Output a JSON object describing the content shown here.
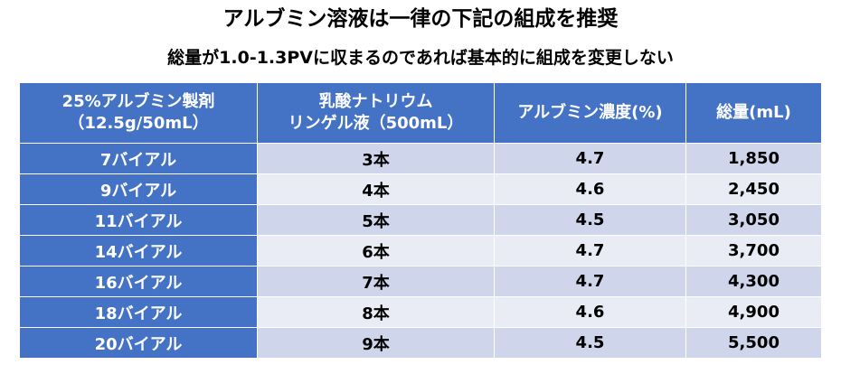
{
  "title": "アルブミン溶液は一律の下記の組成を推奨",
  "subtitle": "総量が1.0-1.3PVに収まるのであれば基本的に組成を変更しない",
  "colors": {
    "header_bg": "#4472c4",
    "row_odd": "#cfd5ea",
    "row_even": "#e9ebf5"
  },
  "table": {
    "headers": [
      [
        "25%アルブミン製剤",
        "（12.5g/50mL）"
      ],
      [
        "乳酸ナトリウム",
        "リンゲル液（500mL）"
      ],
      [
        "アルブミン濃度(%)"
      ],
      [
        "総量(mL)"
      ]
    ],
    "rows": [
      [
        "7バイアル",
        "3本",
        "4.7",
        "1,850"
      ],
      [
        "9バイアル",
        "4本",
        "4.6",
        "2,450"
      ],
      [
        "11バイアル",
        "5本",
        "4.5",
        "3,050"
      ],
      [
        "14バイアル",
        "6本",
        "4.7",
        "3,700"
      ],
      [
        "16バイアル",
        "7本",
        "4.7",
        "4,300"
      ],
      [
        "18バイアル",
        "8本",
        "4.6",
        "4,900"
      ],
      [
        "20バイアル",
        "9本",
        "4.5",
        "5,500"
      ]
    ]
  }
}
